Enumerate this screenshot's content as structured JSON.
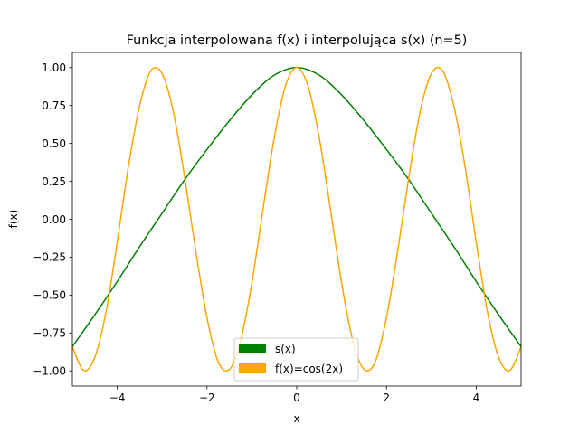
{
  "chart_data": {
    "type": "line",
    "title": "Funkcja interpolowana f(x) i interpolująca s(x) (n=5)",
    "xlabel": "x",
    "ylabel": "f(x)",
    "xlim": [
      -5,
      5
    ],
    "ylim": [
      -1.1,
      1.1
    ],
    "grid": false,
    "legend_position": "lower center",
    "x_ticks": [
      -4,
      -2,
      0,
      2,
      4
    ],
    "x_tick_labels": [
      "−4",
      "−2",
      "0",
      "2",
      "4"
    ],
    "y_ticks": [
      1.0,
      0.75,
      0.5,
      0.25,
      0.0,
      -0.25,
      -0.5,
      -0.75,
      -1.0
    ],
    "y_tick_labels": [
      "1.00",
      "0.75",
      "0.50",
      "0.25",
      "0.00",
      "−0.25",
      "−0.50",
      "−0.75",
      "−1.00"
    ],
    "series": [
      {
        "name": "s(x)",
        "color": "#008000",
        "x": [
          -5,
          -4.5,
          -4,
          -3.5,
          -3,
          -2.5,
          -2,
          -1.5,
          -1,
          -0.5,
          0,
          0.5,
          1,
          1.5,
          2,
          2.5,
          3,
          3.5,
          4,
          4.5,
          5
        ],
        "y": [
          -0.84,
          -0.63,
          -0.41,
          -0.18,
          0.04,
          0.26,
          0.46,
          0.65,
          0.82,
          0.95,
          1.0,
          0.95,
          0.82,
          0.65,
          0.46,
          0.26,
          0.04,
          -0.18,
          -0.41,
          -0.63,
          -0.84
        ]
      },
      {
        "name": "f(x)=cos(2x)",
        "color": "#FFA500",
        "x": [
          -5,
          -4.75,
          -4.5,
          -4.25,
          -4,
          -3.75,
          -3.5,
          -3.25,
          -3,
          -2.75,
          -2.5,
          -2.25,
          -2,
          -1.75,
          -1.5,
          -1.25,
          -1,
          -0.75,
          -0.5,
          -0.25,
          0,
          0.25,
          0.5,
          0.75,
          1,
          1.25,
          1.5,
          1.75,
          2,
          2.25,
          2.5,
          2.75,
          3,
          3.25,
          3.5,
          3.75,
          4,
          4.25,
          4.5,
          4.75,
          5
        ],
        "y": [
          -0.84,
          -0.997,
          -0.91,
          -0.61,
          -0.15,
          0.35,
          0.75,
          0.98,
          0.96,
          0.71,
          0.28,
          -0.21,
          -0.65,
          -0.94,
          -0.99,
          -0.8,
          -0.42,
          0.07,
          0.54,
          0.88,
          1.0,
          0.88,
          0.54,
          0.07,
          -0.42,
          -0.8,
          -0.99,
          -0.94,
          -0.65,
          -0.21,
          0.28,
          0.71,
          0.96,
          0.98,
          0.75,
          0.35,
          -0.15,
          -0.61,
          -0.91,
          -0.997,
          -0.84
        ]
      }
    ]
  }
}
